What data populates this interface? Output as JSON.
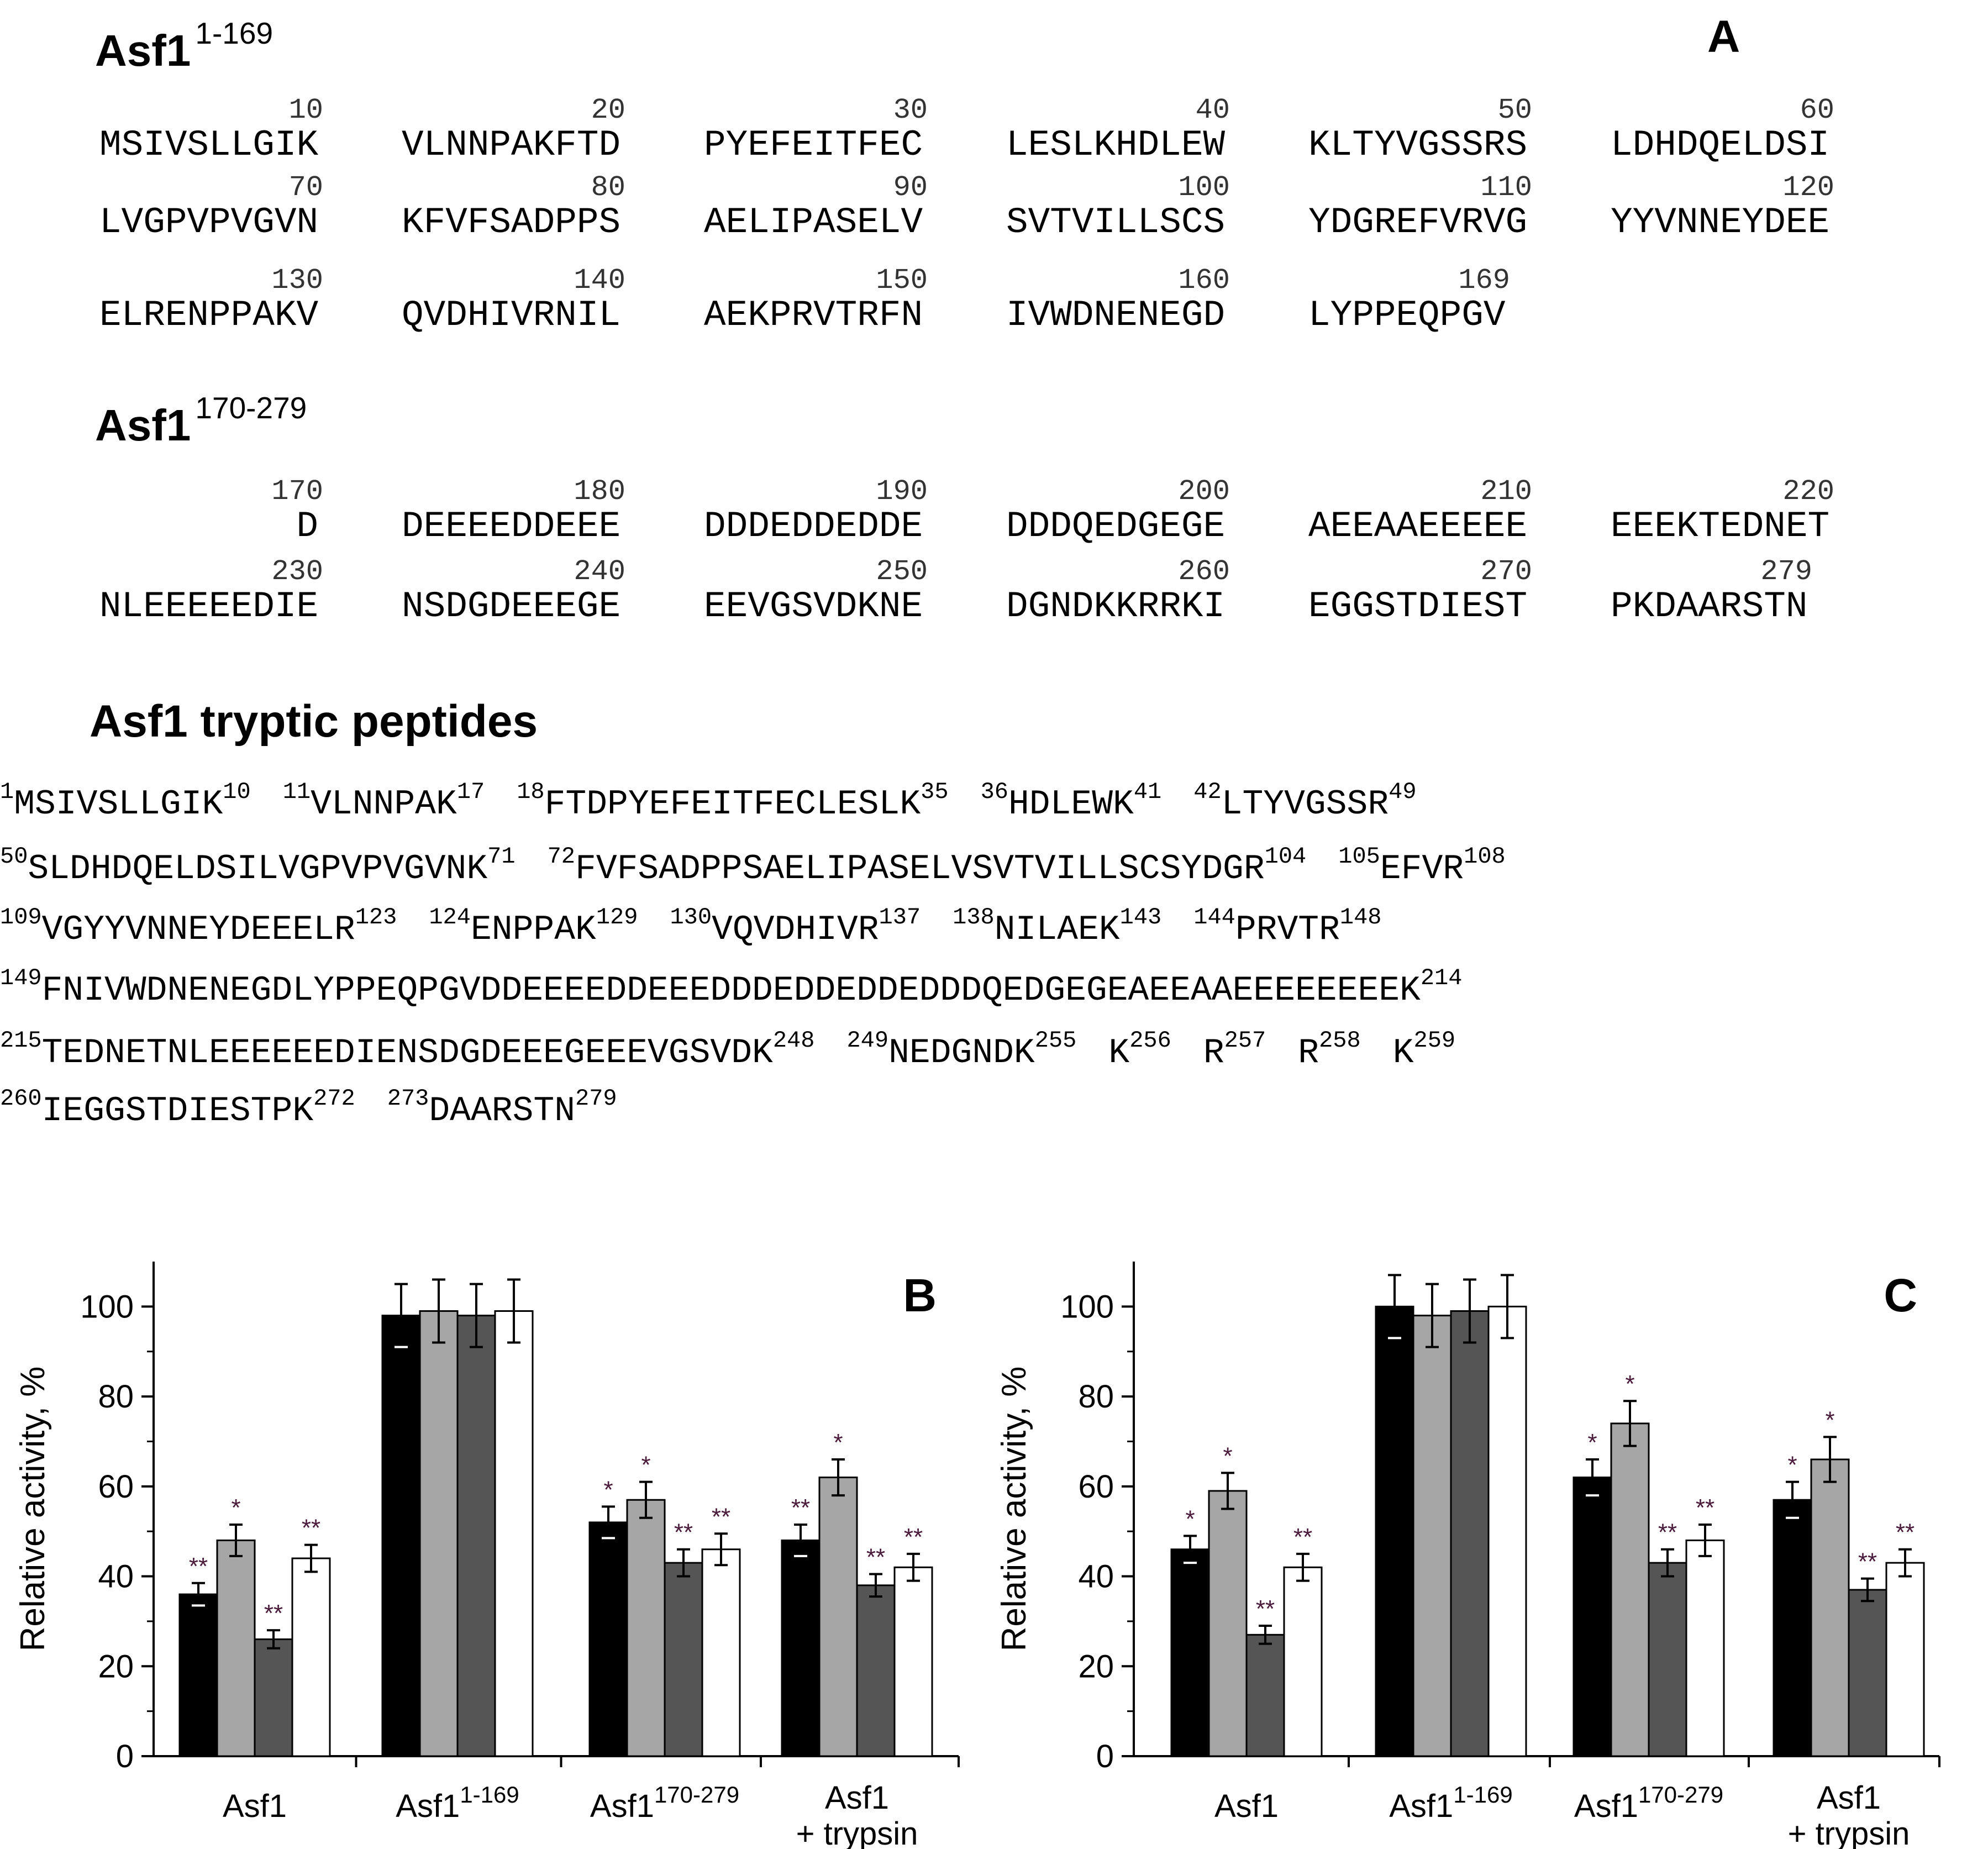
{
  "panel_a": {
    "letter": "A",
    "seq1": {
      "heading": "Asf1",
      "heading_sup": "1-169",
      "rows": [
        {
          "blocks": [
            {
              "num": "10",
              "seq": "MSIVSLLGIK"
            },
            {
              "num": "20",
              "seq": "VLNNPAKFTD"
            },
            {
              "num": "30",
              "seq": "PYEFEITFEC"
            },
            {
              "num": "40",
              "seq": "LESLKHDLEW"
            },
            {
              "num": "50",
              "seq": "KLTYVGSSRS"
            },
            {
              "num": "60",
              "seq": "LDHDQELDSI"
            }
          ]
        },
        {
          "blocks": [
            {
              "num": "70",
              "seq": "LVGPVPVGVN"
            },
            {
              "num": "80",
              "seq": "KFVFSADPPS"
            },
            {
              "num": "90",
              "seq": "AELIPASELV"
            },
            {
              "num": "100",
              "seq": "SVTVILLSCS"
            },
            {
              "num": "110",
              "seq": "YDGREFVRVG"
            },
            {
              "num": "120",
              "seq": "YYVNNEYDEE"
            }
          ]
        },
        {
          "blocks": [
            {
              "num": "130",
              "seq": "ELRENPPAKV"
            },
            {
              "num": "140",
              "seq": "QVDHIVRNIL"
            },
            {
              "num": "150",
              "seq": "AEKPRVTRFN"
            },
            {
              "num": "160",
              "seq": "IVWDNENEGD"
            },
            {
              "num": "169",
              "seq": "LYPPEQPGV"
            }
          ]
        }
      ]
    },
    "seq2": {
      "heading": "Asf1",
      "heading_sup": "170-279",
      "rows": [
        {
          "blocks": [
            {
              "num": "170",
              "seq": "D"
            },
            {
              "num": "180",
              "seq": "DEEEEDDEEE"
            },
            {
              "num": "190",
              "seq": "DDDEDDEDDE"
            },
            {
              "num": "200",
              "seq": "DDDQEDGEGE"
            },
            {
              "num": "210",
              "seq": "AEEAAEEEEE"
            },
            {
              "num": "220",
              "seq": "EEEKTEDNET"
            }
          ]
        },
        {
          "blocks": [
            {
              "num": "230",
              "seq": "NLEEEEEDIE"
            },
            {
              "num": "240",
              "seq": "NSDGDEEEGE"
            },
            {
              "num": "250",
              "seq": "EEVGSVDKNE"
            },
            {
              "num": "260",
              "seq": "DGNDKKRRKI"
            },
            {
              "num": "270",
              "seq": "EGGSTDIEST"
            },
            {
              "num": "279",
              "seq": "PKDAARSTN"
            }
          ]
        }
      ]
    },
    "tryptic": {
      "heading": "Asf1 tryptic peptides",
      "lines": [
        [
          {
            "start": "1",
            "seq": "MSIVSLLGIK",
            "end": "10"
          },
          {
            "start": "11",
            "seq": "VLNNPAK",
            "end": "17"
          },
          {
            "start": "18",
            "seq": "FTDPYEFEITFECLESLK",
            "end": "35"
          },
          {
            "start": "36",
            "seq": "HDLEWK",
            "end": "41"
          },
          {
            "start": "42",
            "seq": "LTYVGSSR",
            "end": "49"
          }
        ],
        [
          {
            "start": "50",
            "seq": "SLDHDQELDSILVGPVPVGVNK",
            "end": "71"
          },
          {
            "start": "72",
            "seq": "FVFSADPPSAELIPASELVSVTVILLSCSYDGR",
            "end": "104"
          },
          {
            "start": "105",
            "seq": "EFVR",
            "end": "108"
          }
        ],
        [
          {
            "start": "109",
            "seq": "VGYYVNNEYDEEELR",
            "end": "123"
          },
          {
            "start": "124",
            "seq": "ENPPAK",
            "end": "129"
          },
          {
            "start": "130",
            "seq": "VQVDHIVR",
            "end": "137"
          },
          {
            "start": "138",
            "seq": "NILAEK",
            "end": "143"
          },
          {
            "start": "144",
            "seq": "PRVTR",
            "end": "148"
          }
        ],
        [
          {
            "start": "149",
            "seq": "FNIVWDNENEGDLYPPEQPGVDDEEEEDDEEEDDDEDDEDDEDDDQEDGEGEAEEAAEEEEEEEEK",
            "end": "214"
          }
        ],
        [
          {
            "start": "215",
            "seq": "TEDNETNLEEEEEEDIENSDGDEEEGEEEVGSVDK",
            "end": "248"
          },
          {
            "start": "249",
            "seq": "NEDGNDK",
            "end": "255"
          },
          {
            "start": "",
            "seq": "K",
            "end": "256"
          },
          {
            "start": "",
            "seq": "R",
            "end": "257"
          },
          {
            "start": "",
            "seq": "R",
            "end": "258"
          },
          {
            "start": "",
            "seq": "K",
            "end": "259"
          }
        ],
        [
          {
            "start": "260",
            "seq": "IEGGSTDIESTPK",
            "end": "272"
          },
          {
            "start": "273",
            "seq": "DAARSTN",
            "end": "279"
          }
        ]
      ]
    }
  },
  "chart_data": [
    {
      "panel": "B",
      "type": "bar",
      "ylabel": "Relative activity, %",
      "ylim": [
        0,
        110
      ],
      "yticks": [
        0,
        20,
        40,
        60,
        80,
        100
      ],
      "categories": [
        {
          "main": "Asf1",
          "sup": "",
          "line2": ""
        },
        {
          "main": "Asf1",
          "sup": "1-169",
          "line2": ""
        },
        {
          "main": "Asf1",
          "sup": "170-279",
          "line2": ""
        },
        {
          "main": "Asf1",
          "sup": "",
          "line2": "+ trypsin"
        }
      ],
      "series_colors": [
        "#000000",
        "#a6a6a6",
        "#555555",
        "#ffffff"
      ],
      "series": [
        {
          "values": [
            36,
            98,
            52,
            48
          ],
          "errors": [
            2.5,
            7,
            3.5,
            3.5
          ],
          "marks": [
            "**",
            "",
            "*",
            "**"
          ]
        },
        {
          "values": [
            48,
            99,
            57,
            62
          ],
          "errors": [
            3.5,
            7,
            4,
            4
          ],
          "marks": [
            "*",
            "",
            "*",
            "*"
          ]
        },
        {
          "values": [
            26,
            98,
            43,
            38
          ],
          "errors": [
            2,
            7,
            3,
            2.5
          ],
          "marks": [
            "**",
            "",
            "**",
            "**"
          ]
        },
        {
          "values": [
            44,
            99,
            46,
            42
          ],
          "errors": [
            3,
            7,
            3.5,
            3
          ],
          "marks": [
            "**",
            "",
            "**",
            "**"
          ]
        }
      ]
    },
    {
      "panel": "C",
      "type": "bar",
      "ylabel": "Relative activity, %",
      "ylim": [
        0,
        110
      ],
      "yticks": [
        0,
        20,
        40,
        60,
        80,
        100
      ],
      "categories": [
        {
          "main": "Asf1",
          "sup": "",
          "line2": ""
        },
        {
          "main": "Asf1",
          "sup": "1-169",
          "line2": ""
        },
        {
          "main": "Asf1",
          "sup": "170-279",
          "line2": ""
        },
        {
          "main": "Asf1",
          "sup": "",
          "line2": "+ trypsin"
        }
      ],
      "series_colors": [
        "#000000",
        "#a6a6a6",
        "#555555",
        "#ffffff"
      ],
      "series": [
        {
          "values": [
            46,
            100,
            62,
            57
          ],
          "errors": [
            3,
            7,
            4,
            4
          ],
          "marks": [
            "*",
            "",
            "*",
            "*"
          ]
        },
        {
          "values": [
            59,
            98,
            74,
            66
          ],
          "errors": [
            4,
            7,
            5,
            5
          ],
          "marks": [
            "*",
            "",
            "*",
            "*"
          ]
        },
        {
          "values": [
            27,
            99,
            43,
            37
          ],
          "errors": [
            2,
            7,
            3,
            2.5
          ],
          "marks": [
            "**",
            "",
            "**",
            "**"
          ]
        },
        {
          "values": [
            42,
            100,
            48,
            43
          ],
          "errors": [
            3,
            7,
            3.5,
            3
          ],
          "marks": [
            "**",
            "",
            "**",
            "**"
          ]
        }
      ]
    }
  ]
}
